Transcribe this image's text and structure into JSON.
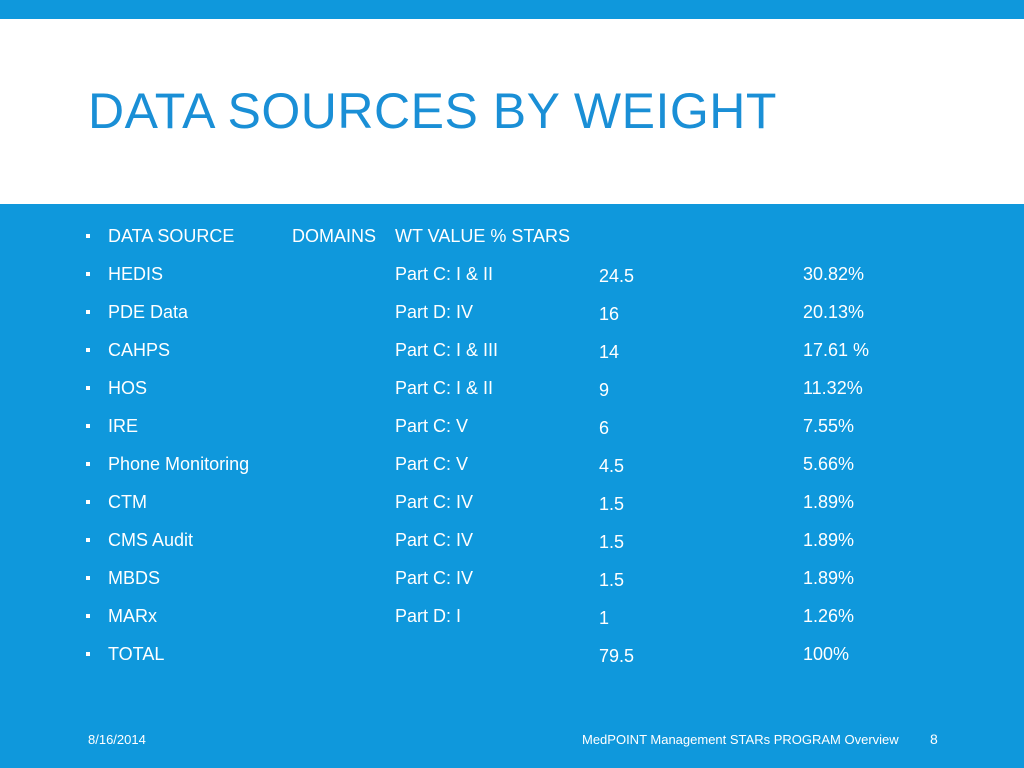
{
  "slide": {
    "title": "DATA SOURCES BY WEIGHT"
  },
  "table": {
    "headers": {
      "source": "DATA SOURCE",
      "domains": "DOMAINS",
      "wt_value": "WT VALUE",
      "pct_stars": "% STARS"
    },
    "rows": [
      {
        "source": "HEDIS",
        "domain": "Part C: I & II",
        "weight": "24.5",
        "percent": "30.82%"
      },
      {
        "source": "PDE Data",
        "domain": "Part D: IV",
        "weight": "16",
        "percent": "20.13%"
      },
      {
        "source": "CAHPS",
        "domain": "Part C: I & III",
        "weight": "14",
        "percent": "17.61 %"
      },
      {
        "source": "HOS",
        "domain": "Part C: I & II",
        "weight": "9",
        "percent": "11.32%"
      },
      {
        "source": "IRE",
        "domain": "Part C: V",
        "weight": "6",
        "percent": "7.55%"
      },
      {
        "source": "Phone Monitoring",
        "domain": "Part C: V",
        "weight": "4.5",
        "percent": "5.66%"
      },
      {
        "source": "CTM",
        "domain": "Part C: IV",
        "weight": "1.5",
        "percent": "1.89%"
      },
      {
        "source": "CMS Audit",
        "domain": "Part C: IV",
        "weight": "1.5",
        "percent": "1.89%"
      },
      {
        "source": "MBDS",
        "domain": "Part C: IV",
        "weight": "1.5",
        "percent": "1.89%"
      },
      {
        "source": "MARx",
        "domain": "Part D: I",
        "weight": "1",
        "percent": "1.26%"
      },
      {
        "source": "TOTAL",
        "domain": "",
        "weight": "79.5",
        "percent": "100%"
      }
    ]
  },
  "footer": {
    "date": "8/16/2014",
    "text": "MedPOINT Management STARs PROGRAM Overview",
    "page_number": "8"
  },
  "colors": {
    "accent_blue": "#0f98dc",
    "title_blue": "#1a8fd6",
    "background": "#ffffff"
  }
}
